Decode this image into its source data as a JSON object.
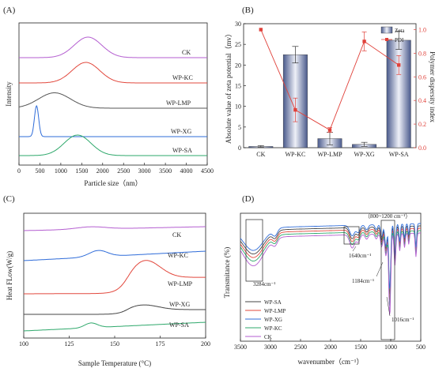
{
  "panels": {
    "A": {
      "label": "(A)",
      "xlabel": "Particle size（nm）",
      "ylabel": "Intensity",
      "x_ticks": [
        0,
        500,
        1000,
        1500,
        2000,
        2500,
        3000,
        3500,
        4000,
        4500
      ],
      "xlim": [
        0,
        4500
      ],
      "curves": [
        {
          "name": "CK",
          "color": "#b45ed0",
          "peak_x": 1650,
          "sigma": 330,
          "height": 1.0
        },
        {
          "name": "WP-KC",
          "color": "#e2483d",
          "peak_x": 1600,
          "sigma": 330,
          "height": 1.0
        },
        {
          "name": "WP-LMP",
          "color": "#555555",
          "peak_x": 850,
          "sigma": 380,
          "height": 0.75
        },
        {
          "name": "WP-XG",
          "color": "#2f6cd9",
          "peak_x": 420,
          "sigma": 50,
          "height": 1.5
        },
        {
          "name": "WP-SA",
          "color": "#2ea86b",
          "peak_x": 1400,
          "sigma": 320,
          "height": 1.0
        }
      ]
    },
    "B": {
      "label": "(B)",
      "ylabel_left": "Absolute value of zeta potential（mv）",
      "ylabel_right": "Polymer dispersity index",
      "categories": [
        "CK",
        "WP-KC",
        "WP-LMP",
        "WP-XG",
        "WP-SA"
      ],
      "zeta_values": [
        0.3,
        22.5,
        2.2,
        0.8,
        26.0
      ],
      "zeta_errors": [
        0.2,
        2.0,
        1.5,
        0.5,
        2.2
      ],
      "pdi_values": [
        1.0,
        0.32,
        0.15,
        0.9,
        0.7
      ],
      "pdi_errors": [
        0.0,
        0.1,
        0.02,
        0.08,
        0.08
      ],
      "left_ylim": [
        0,
        30
      ],
      "left_ticks": [
        0,
        5,
        10,
        15,
        20,
        25,
        30
      ],
      "right_ylim": [
        0,
        1.05
      ],
      "right_ticks": [
        0.0,
        0.2,
        0.4,
        0.6,
        0.8,
        1.0
      ],
      "legend": {
        "zeta": "Zeta",
        "pdi": "PDI"
      },
      "colors": {
        "bar_dark": "#4a5a8c",
        "bar_light": "#eef0f8",
        "pdi": "#e0413a"
      }
    },
    "C": {
      "label": "(C)",
      "xlabel": "Sample Temperature (°C)",
      "ylabel": "Heat FLow(W/g)",
      "x_ticks": [
        100,
        125,
        150,
        175,
        200
      ],
      "xlim": [
        100,
        200
      ],
      "curves": [
        {
          "name": "CK",
          "color": "#b45ed0",
          "peak_x": 137,
          "width": 8,
          "height": 3
        },
        {
          "name": "WP-KC",
          "color": "#2f6cd9",
          "peak_x": 141,
          "width": 5,
          "height": 8
        },
        {
          "name": "WP-LMP",
          "color": "#e2483d",
          "peak_x": 167,
          "width": 8,
          "height": 22
        },
        {
          "name": "WP-XG",
          "color": "#444444",
          "peak_x": 166,
          "width": 8,
          "height": 6
        },
        {
          "name": "WP-SA",
          "color": "#2ea86b",
          "peak_x": 137,
          "width": 3.5,
          "height": 6
        }
      ]
    },
    "D": {
      "label": "(D)",
      "xlabel": "wavenumber（cm⁻¹）",
      "ylabel": "Transmitance (%)",
      "x_ticks": [
        3500,
        3000,
        2500,
        2000,
        1500,
        1000,
        500
      ],
      "xlim": [
        3500,
        500
      ],
      "annotations": {
        "peak_3284": "3284cm⁻¹",
        "peak_1640": "1640cm⁻¹",
        "peak_1184": "1184cm⁻¹",
        "peak_1016": "1016cm⁻¹",
        "region": "（800~1200 cm⁻¹）"
      },
      "legend": [
        {
          "name": "WP-SA",
          "color": "#444444"
        },
        {
          "name": "WP-LMP",
          "color": "#e2483d"
        },
        {
          "name": "WP-XG",
          "color": "#2f6cd9"
        },
        {
          "name": "WP-KC",
          "color": "#2ea86b"
        },
        {
          "name": "CK",
          "color": "#b45ed0"
        }
      ]
    }
  }
}
